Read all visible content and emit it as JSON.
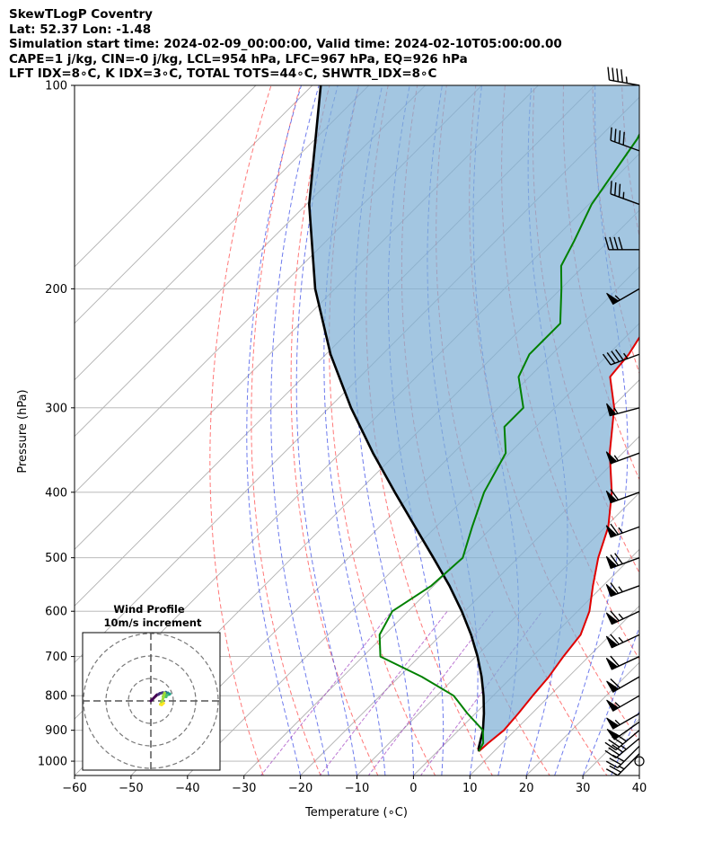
{
  "title": {
    "line1": "SkewTLogP Coventry",
    "line2": "Lat: 52.37   Lon: -1.48",
    "line3": "Simulation start time: 2024-02-09_00:00:00, Valid time: 2024-02-10T05:00:00.00",
    "line4": "CAPE=1 j/kg, CIN=-0 j/kg, LCL=954 hPa, LFC=967 hPa, EQ=926 hPa",
    "line5": "LFT IDX=8∘C, K IDX=3∘C, TOTAL TOTS=44∘C, SHWTR_IDX=8∘C"
  },
  "chart_data": {
    "type": "skewt",
    "xlabel": "Temperature (∘C)",
    "ylabel": "Pressure (hPa)",
    "xlim": [
      -60,
      40
    ],
    "ylim": [
      1050,
      100
    ],
    "x_ticks": [
      -60,
      -50,
      -40,
      -30,
      -20,
      -10,
      0,
      10,
      20,
      30,
      40
    ],
    "x_tick_labels": [
      "−60",
      "−50",
      "−40",
      "−30",
      "−20",
      "−10",
      "0",
      "10",
      "20",
      "30",
      "40"
    ],
    "y_ticks": [
      1000,
      900,
      800,
      700,
      600,
      500,
      400,
      300,
      200,
      100
    ],
    "y_tick_labels": [
      "1000",
      "900",
      "800",
      "700",
      "600",
      "500",
      "400",
      "300",
      "200",
      "100"
    ],
    "colors": {
      "temperature": "#e00000",
      "dewpoint": "#008000",
      "parcel": "#000000",
      "cape_fill": "#7fb0d6",
      "dry_adiabat": "#ff6060",
      "moist_adiabat": "#4a5ae8",
      "mixing_ratio": "#a040c0",
      "isotherm_grid": "#b0b0b0"
    },
    "series": [
      {
        "name": "Temperature",
        "points": [
          [
            967,
            7.3
          ],
          [
            940,
            7.5
          ],
          [
            900,
            8.0
          ],
          [
            850,
            7.6
          ],
          [
            800,
            7.0
          ],
          [
            750,
            6.5
          ],
          [
            700,
            5.5
          ],
          [
            650,
            4.7
          ],
          [
            600,
            2.1
          ],
          [
            550,
            -1.8
          ],
          [
            500,
            -5.8
          ],
          [
            450,
            -9.5
          ],
          [
            400,
            -15.0
          ],
          [
            350,
            -22.3
          ],
          [
            300,
            -29.5
          ],
          [
            270,
            -35.7
          ],
          [
            250,
            -36.4
          ],
          [
            225,
            -38.4
          ],
          [
            200,
            -44.9
          ],
          [
            180,
            -49.0
          ],
          [
            160,
            -53.9
          ],
          [
            140,
            -59.5
          ],
          [
            120,
            -65.2
          ],
          [
            110,
            -67.4
          ],
          [
            100,
            -70.8
          ]
        ]
      },
      {
        "name": "Dewpoint",
        "points": [
          [
            967,
            7.3
          ],
          [
            940,
            6.6
          ],
          [
            900,
            4.3
          ],
          [
            850,
            -1.4
          ],
          [
            800,
            -7.0
          ],
          [
            750,
            -16.0
          ],
          [
            700,
            -26.9
          ],
          [
            650,
            -30.9
          ],
          [
            600,
            -32.8
          ],
          [
            550,
            -30.4
          ],
          [
            500,
            -29.8
          ],
          [
            450,
            -33.6
          ],
          [
            400,
            -37.6
          ],
          [
            350,
            -40.7
          ],
          [
            320,
            -45.6
          ],
          [
            300,
            -45.6
          ],
          [
            270,
            -51.9
          ],
          [
            250,
            -54.0
          ],
          [
            225,
            -54.0
          ],
          [
            200,
            -59.9
          ],
          [
            185,
            -64.0
          ],
          [
            170,
            -66.1
          ],
          [
            150,
            -69.5
          ],
          [
            120,
            -73.0
          ],
          [
            100,
            -77.8
          ]
        ]
      },
      {
        "name": "Parcel",
        "points": [
          [
            967,
            7.3
          ],
          [
            954,
            6.6
          ],
          [
            900,
            4.3
          ],
          [
            850,
            1.5
          ],
          [
            800,
            -1.7
          ],
          [
            750,
            -5.4
          ],
          [
            700,
            -9.7
          ],
          [
            650,
            -14.7
          ],
          [
            600,
            -20.5
          ],
          [
            550,
            -27.2
          ],
          [
            500,
            -35.0
          ],
          [
            450,
            -43.7
          ],
          [
            400,
            -53.4
          ],
          [
            350,
            -64.2
          ],
          [
            300,
            -76.1
          ],
          [
            250,
            -89.2
          ],
          [
            200,
            -103.5
          ],
          [
            150,
            -119.5
          ],
          [
            100,
            -138.5
          ]
        ]
      }
    ],
    "wind_barbs": {
      "pressures": [
        1000,
        975,
        950,
        925,
        900,
        875,
        850,
        800,
        750,
        700,
        650,
        600,
        550,
        500,
        450,
        400,
        350,
        300,
        250,
        200,
        175,
        150,
        125,
        100
      ],
      "speed_kt": [
        0,
        25,
        30,
        35,
        40,
        50,
        55,
        55,
        60,
        60,
        65,
        65,
        65,
        70,
        65,
        60,
        55,
        55,
        45,
        55,
        40,
        35,
        40,
        45
      ],
      "direction_deg": [
        0,
        225,
        225,
        230,
        230,
        235,
        240,
        240,
        240,
        245,
        245,
        245,
        250,
        250,
        250,
        250,
        250,
        255,
        250,
        240,
        270,
        290,
        290,
        280
      ]
    },
    "inset": {
      "title": "Wind Profile",
      "subtitle": "10m/s increment",
      "rings_ms": [
        10,
        20,
        30
      ]
    }
  }
}
